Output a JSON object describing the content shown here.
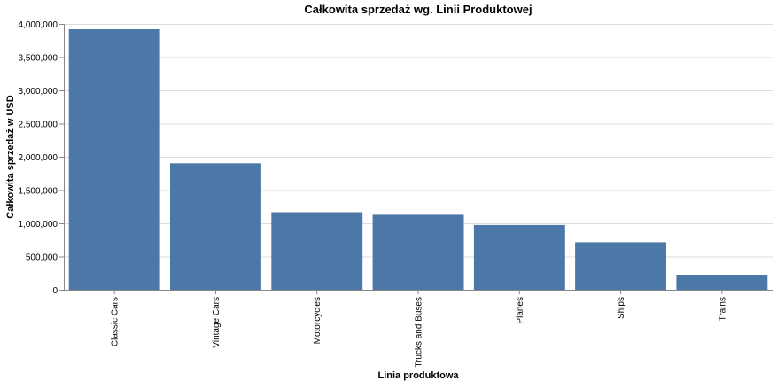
{
  "chart_data": {
    "type": "bar",
    "title": "Całkowita sprzedaż wg. Linii Produktowej",
    "xlabel": "Linia produktowa",
    "ylabel": "Całkowita sprzedaż w USD",
    "categories": [
      "Classic Cars",
      "Vintage Cars",
      "Motorcycles",
      "Trucks and Buses",
      "Planes",
      "Ships",
      "Trains"
    ],
    "values": [
      3919616,
      1903151,
      1166388,
      1127790,
      975004,
      714437,
      226243
    ],
    "ylim": [
      0,
      4000000
    ],
    "yticks": [
      0,
      500000,
      1000000,
      1500000,
      2000000,
      2500000,
      3000000,
      3500000,
      4000000
    ],
    "ytick_labels": [
      "0",
      "500,000",
      "1,000,000",
      "1,500,000",
      "2,000,000",
      "2,500,000",
      "3,000,000",
      "3,500,000",
      "4,000,000"
    ],
    "grid": true,
    "legend": "none",
    "bar_color": "#4c78a8"
  }
}
